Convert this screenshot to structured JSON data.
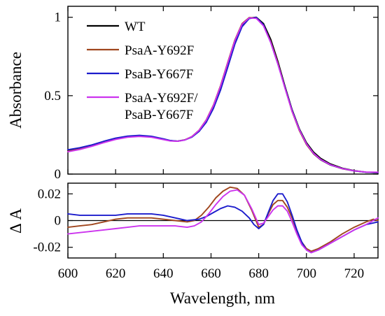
{
  "chart_data": [
    {
      "type": "line",
      "panel": "absorbance",
      "ylabel": "Absorbance",
      "xlabel": "",
      "xlim": [
        600,
        730
      ],
      "ylim": [
        0,
        1.07
      ],
      "x_ticks": [
        600,
        620,
        640,
        660,
        680,
        700,
        720
      ],
      "y_ticks": [
        0,
        0.5,
        1
      ],
      "y_tick_labels": [
        "0",
        "0.5",
        "1"
      ],
      "grid": false,
      "legend_position": "top-left",
      "series": [
        {
          "name": "WT",
          "color": "#000000",
          "points": [
            [
              600,
              0.15
            ],
            [
              605,
              0.163
            ],
            [
              610,
              0.182
            ],
            [
              615,
              0.205
            ],
            [
              620,
              0.225
            ],
            [
              625,
              0.238
            ],
            [
              630,
              0.242
            ],
            [
              635,
              0.237
            ],
            [
              640,
              0.222
            ],
            [
              643,
              0.212
            ],
            [
              646,
              0.21
            ],
            [
              649,
              0.218
            ],
            [
              652,
              0.238
            ],
            [
              655,
              0.275
            ],
            [
              658,
              0.335
            ],
            [
              661,
              0.425
            ],
            [
              664,
              0.545
            ],
            [
              667,
              0.69
            ],
            [
              670,
              0.835
            ],
            [
              673,
              0.945
            ],
            [
              676,
              0.995
            ],
            [
              679,
              1.0
            ],
            [
              682,
              0.96
            ],
            [
              685,
              0.86
            ],
            [
              688,
              0.72
            ],
            [
              691,
              0.56
            ],
            [
              694,
              0.41
            ],
            [
              697,
              0.29
            ],
            [
              700,
              0.2
            ],
            [
              703,
              0.14
            ],
            [
              706,
              0.1
            ],
            [
              710,
              0.065
            ],
            [
              715,
              0.038
            ],
            [
              720,
              0.022
            ],
            [
              725,
              0.012
            ],
            [
              730,
              0.008
            ]
          ]
        },
        {
          "name": "PsaA-Y692F",
          "color": "#a0461e",
          "points": [
            [
              600,
              0.146
            ],
            [
              605,
              0.16
            ],
            [
              610,
              0.18
            ],
            [
              615,
              0.203
            ],
            [
              620,
              0.224
            ],
            [
              625,
              0.238
            ],
            [
              630,
              0.243
            ],
            [
              635,
              0.238
            ],
            [
              640,
              0.223
            ],
            [
              643,
              0.213
            ],
            [
              646,
              0.21
            ],
            [
              649,
              0.218
            ],
            [
              652,
              0.24
            ],
            [
              655,
              0.28
            ],
            [
              658,
              0.345
            ],
            [
              661,
              0.44
            ],
            [
              664,
              0.565
            ],
            [
              667,
              0.712
            ],
            [
              670,
              0.855
            ],
            [
              673,
              0.96
            ],
            [
              676,
              0.998
            ],
            [
              679,
              0.995
            ],
            [
              682,
              0.948
            ],
            [
              685,
              0.845
            ],
            [
              688,
              0.708
            ],
            [
              691,
              0.55
            ],
            [
              694,
              0.398
            ],
            [
              697,
              0.278
            ],
            [
              700,
              0.188
            ],
            [
              703,
              0.128
            ],
            [
              706,
              0.09
            ],
            [
              710,
              0.058
            ],
            [
              715,
              0.034
            ],
            [
              720,
              0.02
            ],
            [
              725,
              0.012
            ],
            [
              730,
              0.01
            ]
          ]
        },
        {
          "name": "PsaB-Y667F",
          "color": "#1c1ccc",
          "points": [
            [
              600,
              0.155
            ],
            [
              605,
              0.168
            ],
            [
              610,
              0.186
            ],
            [
              615,
              0.209
            ],
            [
              620,
              0.229
            ],
            [
              625,
              0.242
            ],
            [
              630,
              0.247
            ],
            [
              635,
              0.241
            ],
            [
              640,
              0.225
            ],
            [
              643,
              0.214
            ],
            [
              646,
              0.21
            ],
            [
              649,
              0.217
            ],
            [
              652,
              0.236
            ],
            [
              655,
              0.272
            ],
            [
              658,
              0.33
            ],
            [
              661,
              0.418
            ],
            [
              664,
              0.536
            ],
            [
              667,
              0.68
            ],
            [
              670,
              0.828
            ],
            [
              673,
              0.94
            ],
            [
              676,
              0.992
            ],
            [
              679,
              0.998
            ],
            [
              682,
              0.952
            ],
            [
              685,
              0.84
            ],
            [
              688,
              0.702
            ],
            [
              691,
              0.552
            ],
            [
              694,
              0.405
            ],
            [
              697,
              0.285
            ],
            [
              700,
              0.193
            ],
            [
              703,
              0.131
            ],
            [
              706,
              0.092
            ],
            [
              710,
              0.059
            ],
            [
              715,
              0.035
            ],
            [
              720,
              0.02
            ],
            [
              725,
              0.012
            ],
            [
              730,
              0.01
            ]
          ]
        },
        {
          "name": "PsaA-Y692F/ PsaB-Y667F",
          "color": "#cc33ee",
          "points": [
            [
              600,
              0.142
            ],
            [
              605,
              0.157
            ],
            [
              610,
              0.177
            ],
            [
              615,
              0.2
            ],
            [
              620,
              0.221
            ],
            [
              625,
              0.235
            ],
            [
              630,
              0.24
            ],
            [
              635,
              0.235
            ],
            [
              640,
              0.22
            ],
            [
              643,
              0.211
            ],
            [
              646,
              0.209
            ],
            [
              649,
              0.217
            ],
            [
              652,
              0.239
            ],
            [
              655,
              0.279
            ],
            [
              658,
              0.343
            ],
            [
              661,
              0.437
            ],
            [
              664,
              0.561
            ],
            [
              667,
              0.707
            ],
            [
              670,
              0.85
            ],
            [
              673,
              0.955
            ],
            [
              676,
              0.996
            ],
            [
              679,
              0.993
            ],
            [
              682,
              0.945
            ],
            [
              685,
              0.84
            ],
            [
              688,
              0.703
            ],
            [
              691,
              0.548
            ],
            [
              694,
              0.4
            ],
            [
              697,
              0.283
            ],
            [
              700,
              0.193
            ],
            [
              703,
              0.132
            ],
            [
              706,
              0.093
            ],
            [
              710,
              0.06
            ],
            [
              715,
              0.035
            ],
            [
              720,
              0.021
            ],
            [
              725,
              0.013
            ],
            [
              730,
              0.012
            ]
          ]
        }
      ]
    },
    {
      "type": "line",
      "panel": "difference",
      "ylabel": "Δ A",
      "xlabel": "Wavelength, nm",
      "xlim": [
        600,
        730
      ],
      "ylim": [
        -0.028,
        0.028
      ],
      "x_ticks": [
        600,
        620,
        640,
        660,
        680,
        700,
        720
      ],
      "y_ticks": [
        0.02,
        0,
        -0.02
      ],
      "y_tick_labels": [
        "0.02",
        "0",
        "-0.02"
      ],
      "zero_line": true,
      "grid": false,
      "series": [
        {
          "name": "PsaA-Y692F",
          "color": "#a0461e",
          "points": [
            [
              600,
              -0.005
            ],
            [
              605,
              -0.004
            ],
            [
              610,
              -0.003
            ],
            [
              615,
              -0.001
            ],
            [
              620,
              0.001
            ],
            [
              625,
              0.002
            ],
            [
              630,
              0.002
            ],
            [
              635,
              0.002
            ],
            [
              640,
              0.001
            ],
            [
              645,
              0.0
            ],
            [
              650,
              -0.001
            ],
            [
              653,
              0.0
            ],
            [
              656,
              0.004
            ],
            [
              659,
              0.01
            ],
            [
              662,
              0.017
            ],
            [
              665,
              0.022
            ],
            [
              668,
              0.025
            ],
            [
              671,
              0.024
            ],
            [
              674,
              0.019
            ],
            [
              677,
              0.008
            ],
            [
              680,
              -0.005
            ],
            [
              682,
              -0.003
            ],
            [
              684,
              0.005
            ],
            [
              686,
              0.012
            ],
            [
              688,
              0.015
            ],
            [
              690,
              0.015
            ],
            [
              692,
              0.01
            ],
            [
              694,
              0.002
            ],
            [
              696,
              -0.008
            ],
            [
              698,
              -0.016
            ],
            [
              700,
              -0.021
            ],
            [
              702,
              -0.023
            ],
            [
              705,
              -0.021
            ],
            [
              710,
              -0.016
            ],
            [
              715,
              -0.01
            ],
            [
              720,
              -0.005
            ],
            [
              725,
              -0.001
            ],
            [
              728,
              0.001
            ],
            [
              730,
              0.0
            ]
          ]
        },
        {
          "name": "PsaB-Y667F",
          "color": "#1c1ccc",
          "points": [
            [
              600,
              0.005
            ],
            [
              605,
              0.004
            ],
            [
              610,
              0.004
            ],
            [
              615,
              0.004
            ],
            [
              620,
              0.004
            ],
            [
              625,
              0.005
            ],
            [
              630,
              0.005
            ],
            [
              635,
              0.005
            ],
            [
              640,
              0.004
            ],
            [
              645,
              0.002
            ],
            [
              650,
              0.0
            ],
            [
              655,
              0.001
            ],
            [
              658,
              0.003
            ],
            [
              661,
              0.006
            ],
            [
              664,
              0.009
            ],
            [
              667,
              0.011
            ],
            [
              670,
              0.01
            ],
            [
              673,
              0.007
            ],
            [
              676,
              0.002
            ],
            [
              678,
              -0.003
            ],
            [
              680,
              -0.006
            ],
            [
              682,
              -0.003
            ],
            [
              684,
              0.006
            ],
            [
              686,
              0.015
            ],
            [
              688,
              0.02
            ],
            [
              690,
              0.02
            ],
            [
              692,
              0.014
            ],
            [
              694,
              0.004
            ],
            [
              696,
              -0.007
            ],
            [
              698,
              -0.016
            ],
            [
              700,
              -0.022
            ],
            [
              702,
              -0.024
            ],
            [
              705,
              -0.022
            ],
            [
              710,
              -0.017
            ],
            [
              715,
              -0.012
            ],
            [
              720,
              -0.007
            ],
            [
              725,
              -0.003
            ],
            [
              730,
              -0.001
            ]
          ]
        },
        {
          "name": "PsaA-Y692F/ PsaB-Y667F",
          "color": "#cc33ee",
          "points": [
            [
              600,
              -0.01
            ],
            [
              605,
              -0.009
            ],
            [
              610,
              -0.008
            ],
            [
              615,
              -0.007
            ],
            [
              620,
              -0.006
            ],
            [
              625,
              -0.005
            ],
            [
              630,
              -0.004
            ],
            [
              635,
              -0.004
            ],
            [
              640,
              -0.004
            ],
            [
              645,
              -0.004
            ],
            [
              650,
              -0.005
            ],
            [
              653,
              -0.004
            ],
            [
              656,
              -0.001
            ],
            [
              659,
              0.005
            ],
            [
              662,
              0.012
            ],
            [
              665,
              0.018
            ],
            [
              668,
              0.022
            ],
            [
              671,
              0.023
            ],
            [
              674,
              0.019
            ],
            [
              677,
              0.009
            ],
            [
              680,
              -0.003
            ],
            [
              682,
              -0.002
            ],
            [
              684,
              0.003
            ],
            [
              686,
              0.008
            ],
            [
              688,
              0.011
            ],
            [
              690,
              0.011
            ],
            [
              692,
              0.007
            ],
            [
              694,
              -0.001
            ],
            [
              696,
              -0.01
            ],
            [
              698,
              -0.018
            ],
            [
              700,
              -0.022
            ],
            [
              702,
              -0.024
            ],
            [
              705,
              -0.022
            ],
            [
              710,
              -0.017
            ],
            [
              715,
              -0.012
            ],
            [
              720,
              -0.007
            ],
            [
              725,
              -0.003
            ],
            [
              730,
              0.002
            ]
          ]
        }
      ]
    }
  ]
}
